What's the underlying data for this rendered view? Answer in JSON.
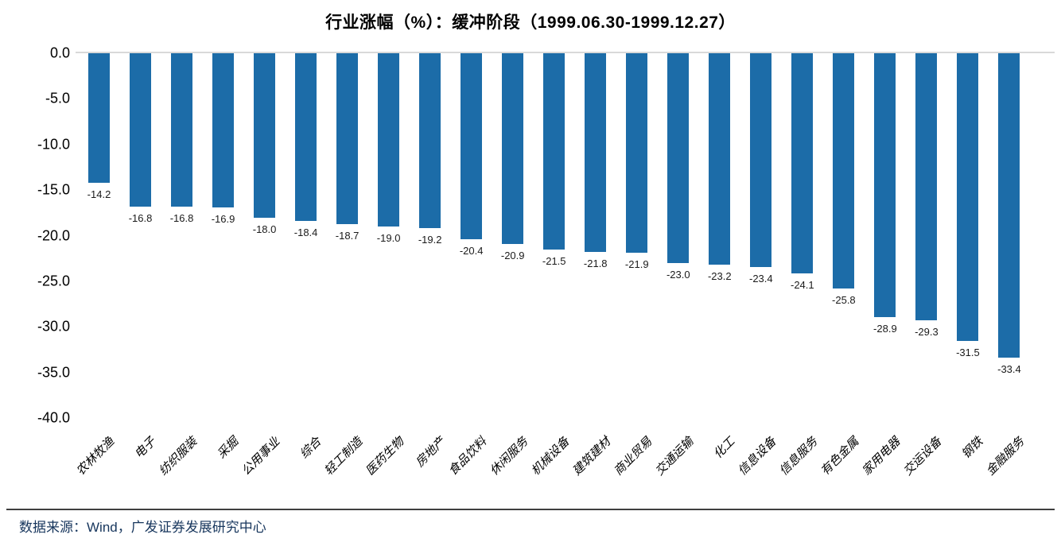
{
  "chart_data": {
    "type": "bar",
    "title": "行业涨幅（%）：缓冲阶段（1999.06.30-1999.12.27）",
    "categories": [
      "农林牧渔",
      "电子",
      "纺织服装",
      "采掘",
      "公用事业",
      "综合",
      "轻工制造",
      "医药生物",
      "房地产",
      "食品饮料",
      "休闲服务",
      "机械设备",
      "建筑建材",
      "商业贸易",
      "交通运输",
      "化工",
      "信息设备",
      "信息服务",
      "有色金属",
      "家用电器",
      "交运设备",
      "钢铁",
      "金融服务"
    ],
    "values": [
      -14.2,
      -16.8,
      -16.8,
      -16.9,
      -18.0,
      -18.4,
      -18.7,
      -19.0,
      -19.2,
      -20.4,
      -20.9,
      -21.5,
      -21.8,
      -21.9,
      -23.0,
      -23.2,
      -23.4,
      -24.1,
      -25.8,
      -28.9,
      -29.3,
      -31.5,
      -33.4
    ],
    "value_labels": [
      "-14.2",
      "-16.8",
      "-16.8",
      "-16.9",
      "-18.0",
      "-18.4",
      "-18.7",
      "-19.0",
      "-19.2",
      "-20.4",
      "-20.9",
      "-21.5",
      "-21.8",
      "-21.9",
      "-23.0",
      "-23.2",
      "-23.4",
      "-24.1",
      "-25.8",
      "-28.9",
      "-29.3",
      "-31.5",
      "-33.4"
    ],
    "xlabel": "",
    "ylabel": "",
    "ylim": [
      -40,
      0
    ],
    "ytick_labels": [
      "0.0",
      "-5.0",
      "-10.0",
      "-15.0",
      "-20.0",
      "-25.0",
      "-30.0",
      "-35.0",
      "-40.0"
    ],
    "yticks": [
      0,
      -5,
      -10,
      -15,
      -20,
      -25,
      -30,
      -35,
      -40
    ],
    "grid": "zero-baseline-only",
    "legend": "none",
    "bar_color": "#1c6ca8"
  },
  "footer": {
    "source_text": "数据来源：Wind，广发证券发展研究中心"
  }
}
